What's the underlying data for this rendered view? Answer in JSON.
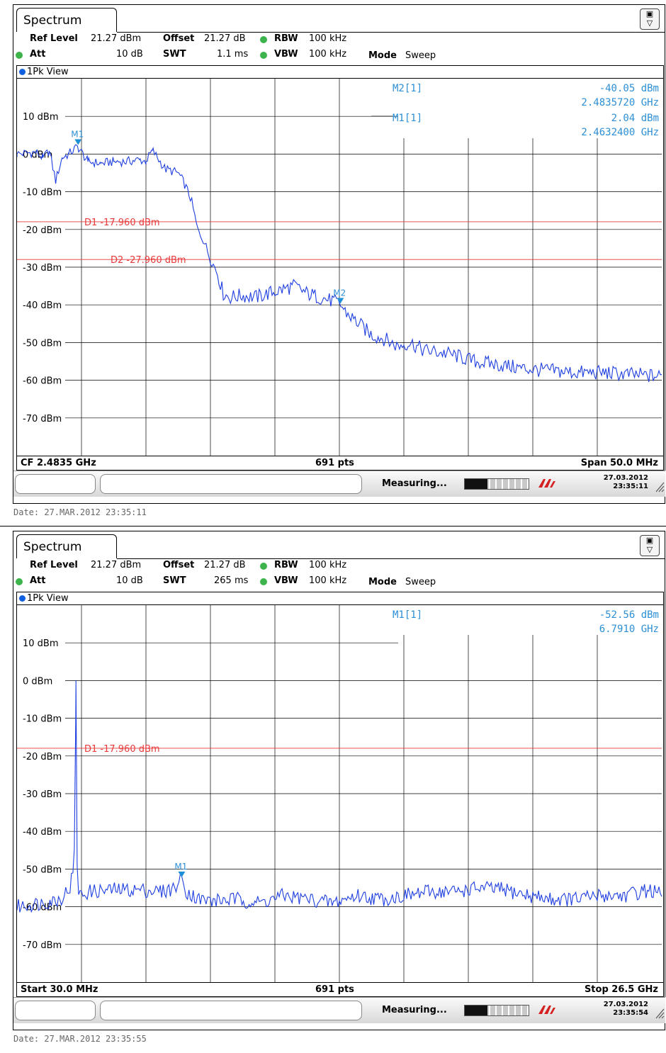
{
  "colors": {
    "trace": "#1f3fe0",
    "display_line": "#e83a3a",
    "marker": "#1e90d6",
    "marker_text": "#2d8fd5",
    "grid": "#000000"
  },
  "panels": [
    {
      "tab_title": "Spectrum",
      "params": {
        "ref_level_label": "Ref Level",
        "ref_level": "21.27 dBm",
        "offset_label": "Offset",
        "offset": "21.27 dB",
        "rbw_label": "RBW",
        "rbw": "100 kHz",
        "att_label": "Att",
        "att": "10 dB",
        "swt_label": "SWT",
        "swt": "1.1 ms",
        "vbw_label": "VBW",
        "vbw": "100 kHz",
        "mode_label": "Mode",
        "mode": "Sweep"
      },
      "view_label": "1Pk View",
      "footer": {
        "left": "CF 2.4835 GHz",
        "center": "691 pts",
        "right": "Span 50.0 MHz"
      },
      "status": {
        "measuring": "Measuring...",
        "progress": 0.35,
        "date": "27.03.2012",
        "time": "23:35:11"
      },
      "date_stamp": "Date: 27.MAR.2012  23:35:11",
      "marker_readouts": [
        {
          "label": "M2[1]",
          "level": "-40.05 dBm",
          "freq": "2.4835720 GHz"
        },
        {
          "label": "M1[1]",
          "level": "2.04 dBm",
          "freq": "2.4632400 GHz"
        }
      ]
    },
    {
      "tab_title": "Spectrum",
      "params": {
        "ref_level_label": "Ref Level",
        "ref_level": "21.27 dBm",
        "offset_label": "Offset",
        "offset": "21.27 dB",
        "rbw_label": "RBW",
        "rbw": "100 kHz",
        "att_label": "Att",
        "att": "10 dB",
        "swt_label": "SWT",
        "swt": "265 ms",
        "vbw_label": "VBW",
        "vbw": "100 kHz",
        "mode_label": "Mode",
        "mode": "Sweep"
      },
      "view_label": "1Pk View",
      "footer": {
        "left": "Start 30.0 MHz",
        "center": "691 pts",
        "right": "Stop 26.5 GHz"
      },
      "status": {
        "measuring": "Measuring...",
        "progress": 0.35,
        "date": "27.03.2012",
        "time": "23:35:54"
      },
      "date_stamp": "Date: 27.MAR.2012  23:35:55",
      "marker_readouts": [
        {
          "label": "M1[1]",
          "level": "-52.56 dBm",
          "freq": "6.7910 GHz"
        }
      ]
    }
  ],
  "chart_data": [
    {
      "type": "line",
      "title": "",
      "xlabel": "",
      "ylabel": "",
      "x_unit": "GHz",
      "xlim": [
        2.4585,
        2.5085
      ],
      "ylim": [
        -80,
        20
      ],
      "y_ticks": [
        10,
        0,
        -10,
        -20,
        -30,
        -40,
        -50,
        -60,
        -70
      ],
      "y_tick_labels": [
        "10 dBm",
        "0 dBm",
        "-10 dBm",
        "-20 dBm",
        "-30 dBm",
        "-40 dBm",
        "-50 dBm",
        "-60 dBm",
        "-70 dBm"
      ],
      "x_divisions": 10,
      "grid": true,
      "display_lines": [
        {
          "label": "D1  -17.960 dBm",
          "value": -17.96
        },
        {
          "label": "D2  -27.960 dBm",
          "value": -27.96
        }
      ],
      "markers": [
        {
          "name": "M1",
          "x": 2.46324,
          "y": 2.04
        },
        {
          "name": "M2",
          "x": 2.483572,
          "y": -40.05
        }
      ],
      "series": [
        {
          "x": [
            2.4585,
            2.46,
            2.4605,
            2.461,
            2.4615,
            2.462,
            2.4625,
            2.4632,
            2.464,
            2.465,
            2.466,
            2.467,
            2.468,
            2.4685,
            2.469,
            2.47,
            2.471,
            2.4715,
            2.472,
            2.4725,
            2.473,
            2.4735,
            2.474,
            2.4745,
            2.475,
            2.476,
            2.477,
            2.478,
            2.479,
            2.48,
            2.481,
            2.482,
            2.483,
            2.4836,
            2.484,
            2.485,
            2.486,
            2.487,
            2.488,
            2.489,
            2.49,
            2.492,
            2.494,
            2.496,
            2.498,
            2.5,
            2.502,
            2.504,
            2.506,
            2.5085
          ],
          "y": [
            0,
            0.5,
            -1,
            0.8,
            -7,
            -1,
            0,
            2,
            -2,
            -2.5,
            -2,
            -2,
            -1.5,
            -2,
            1,
            -4,
            -5,
            -8,
            -12,
            -20,
            -23,
            -28,
            -31,
            -37,
            -38,
            -37.5,
            -38,
            -37,
            -36,
            -35,
            -37,
            -38,
            -39,
            -40,
            -42,
            -45,
            -48,
            -49,
            -51,
            -50,
            -52,
            -53,
            -55,
            -56,
            -57,
            -57.5,
            -58,
            -58,
            -58.5,
            -59
          ]
        }
      ]
    },
    {
      "type": "line",
      "title": "",
      "xlabel": "",
      "ylabel": "",
      "x_unit": "GHz",
      "xlim": [
        0.03,
        26.5
      ],
      "ylim": [
        -80,
        20
      ],
      "y_ticks": [
        10,
        0,
        -10,
        -20,
        -30,
        -40,
        -50,
        -60,
        -70
      ],
      "y_tick_labels": [
        "10 dBm",
        "0 dBm",
        "-10 dBm",
        "-20 dBm",
        "-30 dBm",
        "-40 dBm",
        "-50 dBm",
        "-60 dBm",
        "-70 dBm"
      ],
      "x_divisions": 10,
      "grid": true,
      "display_lines": [
        {
          "label": "D1  -17.960 dBm",
          "value": -17.96
        }
      ],
      "markers": [
        {
          "name": "M1",
          "x": 6.791,
          "y": -52.56
        }
      ],
      "series": [
        {
          "x": [
            0.03,
            1.0,
            1.8,
            2.2,
            2.35,
            2.42,
            2.45,
            2.48,
            2.52,
            2.6,
            3.0,
            4.0,
            5.0,
            6.0,
            6.5,
            6.79,
            7.0,
            7.5,
            8.0,
            9.0,
            10.0,
            11.0,
            12.0,
            13.0,
            14.0,
            15.0,
            16.0,
            17.0,
            18.0,
            19.0,
            20.0,
            21.0,
            22.0,
            23.0,
            24.0,
            25.0,
            26.0,
            26.5
          ],
          "y": [
            -60,
            -59,
            -58,
            -55,
            -50,
            -40,
            0,
            -40,
            -55,
            -57,
            -56,
            -55.5,
            -55.5,
            -56,
            -55,
            -52.56,
            -56,
            -58,
            -58.5,
            -58,
            -59,
            -57,
            -58,
            -59,
            -57,
            -58,
            -57,
            -56,
            -56,
            -55,
            -55.5,
            -57,
            -58,
            -58,
            -57,
            -57,
            -55.5,
            -57
          ]
        }
      ]
    }
  ]
}
